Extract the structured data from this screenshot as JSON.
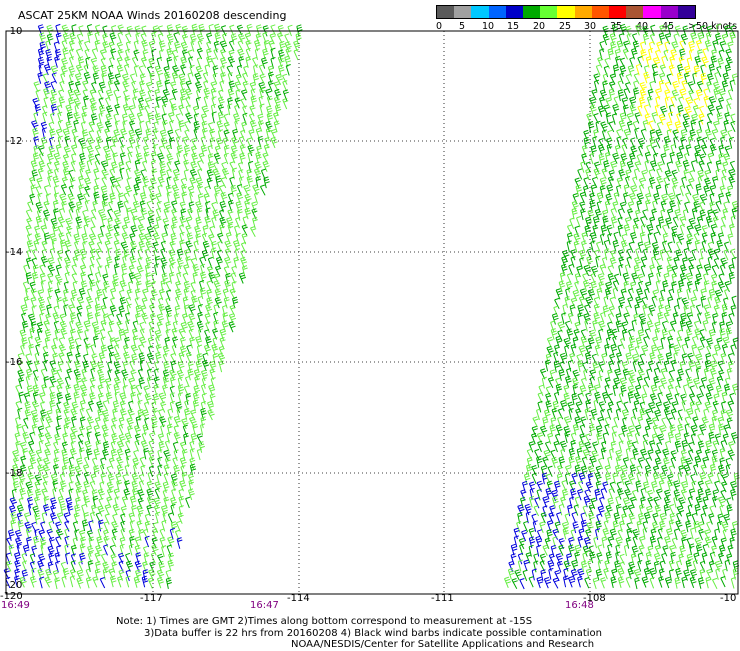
{
  "title": "ASCAT 25KM NOAA Winds 20160208 descending",
  "scale": {
    "labels": [
      "0",
      "5",
      "10",
      "15",
      "20",
      "25",
      "30",
      "35",
      "40",
      "45",
      ">50 knots"
    ],
    "colors": [
      "#5a5a5a",
      "#a0a0a0",
      "#00c8ff",
      "#0064ff",
      "#0000c8",
      "#00aa00",
      "#66ff33",
      "#ffff00",
      "#ffaa00",
      "#ff5500",
      "#ff0000",
      "#aa5533",
      "#ff00ff",
      "#9900cc",
      "#330099"
    ]
  },
  "axes": {
    "lat_labels": [
      "-10",
      "-12",
      "-14",
      "-16",
      "-18",
      "-20"
    ],
    "lon_labels": [
      "-120",
      "-117",
      "-114",
      "-111",
      "-108",
      "-10"
    ],
    "time_labels": [
      "16:49",
      "16:47",
      "16:48"
    ]
  },
  "notes": [
    "Note: 1) Times are GMT 2)Times along bottom correspond to measurement at -15S",
    "3)Data buffer is 22 hrs from 20160208 4) Black wind barbs indicate possible contamination",
    "NOAA/NESDIS/Center for Satellite Applications and Research"
  ],
  "swaths": {
    "barb_colors": {
      "light_green": "#66ee44",
      "dark_green": "#00aa00",
      "blue": "#0000dd",
      "yellow": "#ffff00"
    }
  }
}
